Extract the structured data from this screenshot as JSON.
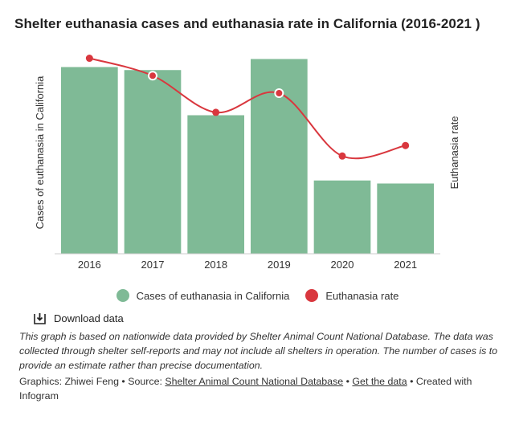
{
  "title": "Shelter euthanasia cases and euthanasia rate in California (2016-2021 )",
  "colors": {
    "bars": "#7fba96",
    "line": "#d9373e",
    "axis": "#cccccc"
  },
  "chart_data": {
    "type": "bar",
    "categories": [
      "2016",
      "2017",
      "2018",
      "2019",
      "2020",
      "2021"
    ],
    "series": [
      {
        "name": "Cases of euthanasia in California",
        "type": "bar",
        "values": [
          9300,
          9150,
          6900,
          9700,
          3650,
          3500
        ]
      },
      {
        "name": "Euthanasia rate",
        "type": "line",
        "values": [
          11.2,
          10.2,
          8.1,
          9.2,
          5.6,
          6.2
        ]
      }
    ],
    "ylabel": "Cases of euthanasia in California",
    "y2label": "Euthanasia rate",
    "ylim": [
      0,
      10000
    ],
    "y2lim": [
      0,
      11.5
    ],
    "grid": false,
    "legend": "bottom"
  },
  "download_label": "Download data",
  "note": "This graph is based on nationwide data provided by Shelter Animal Count National Database. The data was collected through shelter self-reports and may not include all shelters in operation. The number of cases is to provide an estimate rather than precise documentation.",
  "credits": {
    "graphics": "Graphics: Zhiwei Feng",
    "source_prefix": "Source:",
    "source_link": "Shelter Animal Count National Database",
    "get_data": "Get the data",
    "created_with": "Created with Infogram",
    "separator": "•"
  }
}
